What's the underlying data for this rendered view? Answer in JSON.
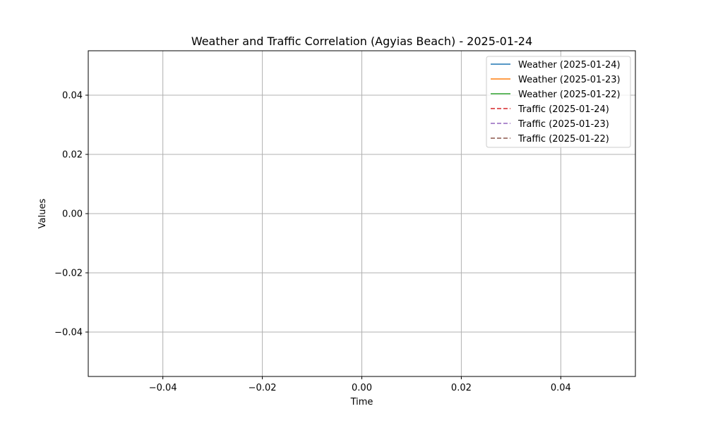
{
  "chart_data": {
    "type": "line",
    "title": "Weather and Traffic Correlation (Agyias Beach) - 2025-01-24",
    "xlabel": "Time",
    "ylabel": "Values",
    "xlim": [
      -0.055,
      0.055
    ],
    "ylim": [
      -0.055,
      0.055
    ],
    "x_ticks": [
      -0.04,
      -0.02,
      0.0,
      0.02,
      0.04
    ],
    "x_tick_labels": [
      "−0.04",
      "−0.02",
      "0.00",
      "0.02",
      "0.04"
    ],
    "y_ticks": [
      -0.04,
      -0.02,
      0.0,
      0.02,
      0.04
    ],
    "y_tick_labels": [
      "−0.04",
      "−0.02",
      "0.00",
      "0.02",
      "0.04"
    ],
    "grid": true,
    "legend_position": "top-right",
    "series": [
      {
        "name": "Weather (2025-01-24)",
        "color": "#1f77b4",
        "line_style": "solid",
        "values": []
      },
      {
        "name": "Weather (2025-01-23)",
        "color": "#ff7f0e",
        "line_style": "solid",
        "values": []
      },
      {
        "name": "Weather (2025-01-22)",
        "color": "#2ca02c",
        "line_style": "solid",
        "values": []
      },
      {
        "name": "Traffic (2025-01-24)",
        "color": "#d62728",
        "line_style": "dashed",
        "values": []
      },
      {
        "name": "Traffic (2025-01-23)",
        "color": "#9467bd",
        "line_style": "dashed",
        "values": []
      },
      {
        "name": "Traffic (2025-01-22)",
        "color": "#8c564b",
        "line_style": "dashed",
        "values": []
      }
    ]
  }
}
